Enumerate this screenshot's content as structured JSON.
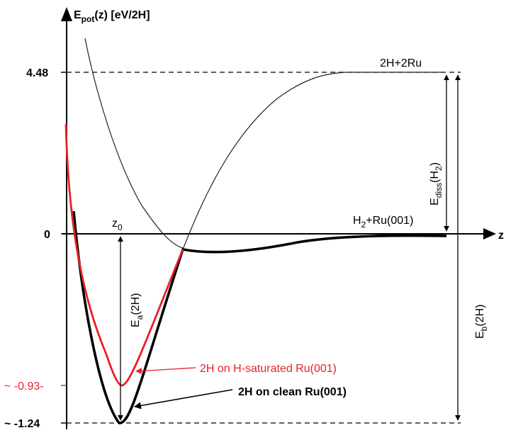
{
  "axes": {
    "y_label_main": "E",
    "y_label_sub": "pot",
    "y_label_rest": "(z) [eV/2H]",
    "x_label": "z"
  },
  "y_ticks": [
    {
      "value": 4.48,
      "label": "4.48",
      "color": "#000000"
    },
    {
      "value": 0,
      "label": "0",
      "color": "#000000"
    },
    {
      "value": -0.93,
      "label": "~ -0.93-",
      "color": "#e8202a"
    },
    {
      "value": -1.24,
      "label": "~ -1.24",
      "color": "#000000"
    }
  ],
  "annotations": {
    "top_state": "2H+2Ru",
    "mid_state_main": "H",
    "mid_state_sub": "2",
    "mid_state_rest": "+Ru(001)",
    "z0_main": "z",
    "z0_sub": "0",
    "ea_main": "E",
    "ea_sub": "a",
    "ea_rest": "(2H)",
    "ediss_main": "E",
    "ediss_sub": "diss",
    "ediss_mid": "(H",
    "ediss_sub2": "2",
    "ediss_end": ")",
    "eb_main": "E",
    "eb_sub": "b",
    "eb_rest": "(2H)",
    "red_curve_label": "2H on H-saturated Ru(001)",
    "black_curve_label": "2H on clean Ru(001)"
  },
  "colors": {
    "accent_red": "#e8202a",
    "ink": "#000000"
  },
  "energies": {
    "dissociation_limit": 4.48,
    "zero": 0,
    "saturated_minimum": -0.93,
    "clean_minimum": -1.24
  }
}
